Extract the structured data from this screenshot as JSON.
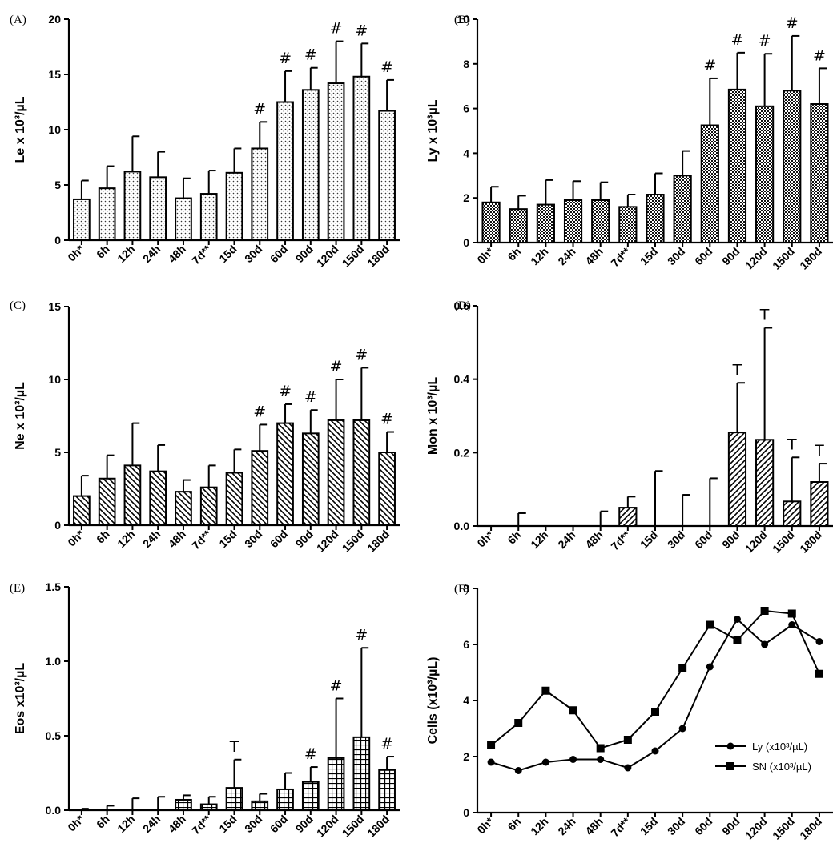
{
  "chart_data": [
    {
      "panel": "(A)",
      "type": "bar",
      "ylabel": "Le x 10³/µL",
      "ylim": [
        0,
        20
      ],
      "yticks": [
        "0",
        "5",
        "10",
        "15",
        "20"
      ],
      "categories": [
        "0h*",
        "6h",
        "12h",
        "24h",
        "48h",
        "7d**",
        "15d",
        "30d",
        "60d",
        "90d",
        "120d",
        "150d",
        "180d"
      ],
      "values": [
        3.7,
        4.7,
        6.2,
        5.7,
        3.8,
        4.2,
        6.1,
        8.3,
        12.5,
        13.6,
        14.2,
        14.8,
        11.7
      ],
      "errors": [
        1.7,
        2.0,
        3.2,
        2.3,
        1.8,
        2.1,
        2.2,
        2.4,
        2.8,
        2.0,
        3.8,
        3.0,
        2.8
      ],
      "marks": [
        "",
        "",
        "",
        "",
        "",
        "",
        "",
        "#",
        "#",
        "#",
        "#",
        "#",
        "#"
      ],
      "pattern": "dots"
    },
    {
      "panel": "(B)",
      "type": "bar",
      "ylabel": "Ly x 10³µL",
      "ylim": [
        0,
        10
      ],
      "yticks": [
        "0",
        "2",
        "4",
        "6",
        "8",
        "10"
      ],
      "categories": [
        "0h*",
        "6h",
        "12h",
        "24h",
        "48h",
        "7d**",
        "15d",
        "30d",
        "60d",
        "90d",
        "120d",
        "150d",
        "180d"
      ],
      "values": [
        1.8,
        1.5,
        1.7,
        1.9,
        1.9,
        1.6,
        2.15,
        3.0,
        5.25,
        6.85,
        6.1,
        6.8,
        6.2
      ],
      "errors": [
        0.7,
        0.6,
        1.1,
        0.85,
        0.8,
        0.55,
        0.95,
        1.1,
        2.1,
        1.65,
        2.35,
        2.45,
        1.6
      ],
      "marks": [
        "",
        "",
        "",
        "",
        "",
        "",
        "",
        "",
        "#",
        "#",
        "#",
        "#",
        "#"
      ],
      "pattern": "checker"
    },
    {
      "panel": "(C)",
      "type": "bar",
      "ylabel": "Ne x 10³/µL",
      "ylim": [
        0,
        15
      ],
      "yticks": [
        "0",
        "5",
        "10",
        "15"
      ],
      "categories": [
        "0h*",
        "6h",
        "12h",
        "24h",
        "48h",
        "7d**",
        "15d",
        "30d",
        "60d",
        "90d",
        "120d",
        "150d",
        "180d"
      ],
      "values": [
        2.0,
        3.2,
        4.1,
        3.7,
        2.3,
        2.6,
        3.6,
        5.1,
        7.0,
        6.3,
        7.2,
        7.2,
        5.0
      ],
      "errors": [
        1.4,
        1.6,
        2.9,
        1.8,
        0.8,
        1.5,
        1.6,
        1.8,
        1.3,
        1.6,
        2.8,
        3.6,
        1.4
      ],
      "marks": [
        "",
        "",
        "",
        "",
        "",
        "",
        "",
        "#",
        "#",
        "#",
        "#",
        "#",
        "#"
      ],
      "pattern": "diag-down"
    },
    {
      "panel": "(D)",
      "type": "bar",
      "ylabel": "Mon x 10³/µL",
      "ylim": [
        0,
        0.6
      ],
      "yticks": [
        "0.0",
        "0.2",
        "0.4",
        "0.6"
      ],
      "categories": [
        "0h*",
        "6h",
        "12h",
        "24h",
        "48h",
        "7d**",
        "15d",
        "30d",
        "60d",
        "90d",
        "120d",
        "150d",
        "180d"
      ],
      "values": [
        0,
        0,
        0,
        0,
        0,
        0.05,
        0,
        0,
        0,
        0.255,
        0.235,
        0.067,
        0.12
      ],
      "errors": [
        0,
        0.035,
        0,
        0,
        0.04,
        0.03,
        0.15,
        0.085,
        0.13,
        0.135,
        0.305,
        0.12,
        0.05
      ],
      "marks": [
        "",
        "",
        "",
        "",
        "",
        "",
        "",
        "",
        "",
        "T",
        "T",
        "T",
        "T"
      ],
      "pattern": "diag-up"
    },
    {
      "panel": "(E)",
      "type": "bar",
      "ylabel": "Eos x10³/µL",
      "ylim": [
        0,
        1.5
      ],
      "yticks": [
        "0.0",
        "0.5",
        "1.0",
        "1.5"
      ],
      "categories": [
        "0h*",
        "6h",
        "12h",
        "24h",
        "48h",
        "7d**",
        "15d",
        "30d",
        "60d",
        "90d",
        "120d",
        "150d",
        "180d"
      ],
      "values": [
        0,
        0,
        0,
        0,
        0.07,
        0.04,
        0.15,
        0.06,
        0.14,
        0.19,
        0.35,
        0.49,
        0.27
      ],
      "errors": [
        0.01,
        0.03,
        0.08,
        0.09,
        0.03,
        0.05,
        0.19,
        0.05,
        0.11,
        0.1,
        0.4,
        0.6,
        0.09
      ],
      "marks": [
        "",
        "",
        "",
        "",
        "",
        "",
        "T",
        "",
        "",
        "#",
        "#",
        "#",
        "#"
      ],
      "pattern": "grid"
    },
    {
      "panel": "(F)",
      "type": "line",
      "ylabel": "Cells (x10³/µL)",
      "ylim": [
        0,
        8
      ],
      "yticks": [
        "0",
        "2",
        "4",
        "6",
        "8"
      ],
      "categories": [
        "0h*",
        "6h",
        "12h",
        "24h",
        "48h",
        "7d**",
        "15d",
        "30d",
        "60d",
        "90d",
        "120d",
        "150d",
        "180d"
      ],
      "series": [
        {
          "name": "Ly (x10³/µL)",
          "marker": "circle",
          "values": [
            1.8,
            1.5,
            1.8,
            1.9,
            1.9,
            1.6,
            2.2,
            3.0,
            5.2,
            6.9,
            6.0,
            6.7,
            6.1
          ]
        },
        {
          "name": "SN (x10³/µL)",
          "marker": "square",
          "values": [
            2.4,
            3.2,
            4.35,
            3.65,
            2.3,
            2.6,
            3.6,
            5.15,
            6.7,
            6.15,
            7.2,
            7.1,
            4.95
          ]
        }
      ],
      "legend": "bottom-right"
    }
  ]
}
